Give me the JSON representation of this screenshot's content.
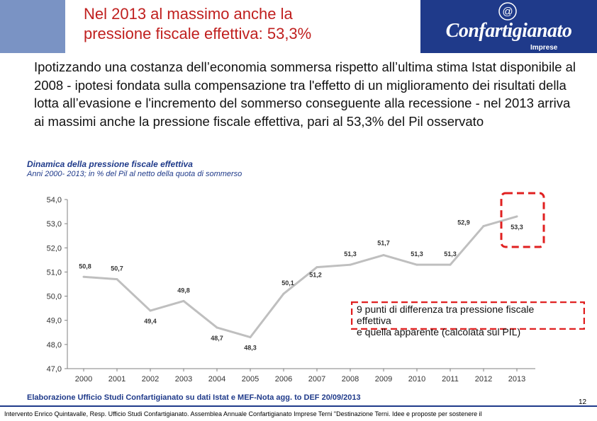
{
  "header": {
    "title_line1": "Nel 2013 al massimo anche la",
    "title_line2": "pressione fiscale effettiva: 53,3%",
    "logo_text": "Confartigianato",
    "logo_sub": "Imprese",
    "logo_symbol": "@",
    "colors": {
      "title": "#c0201f",
      "logo_bg": "#1f3a8a",
      "left_bar": "#7a93c4"
    }
  },
  "intro": "Ipotizzando una costanza dell’economia sommersa rispetto all’ultima stima Istat disponibile al 2008 - ipotesi fondata sulla compensazione tra l'effetto di un miglioramento dei risultati della lotta all’evasione e l'incremento del sommerso conseguente alla recessione - nel 2013 arriva ai massimi anche la pressione fiscale effettiva, pari al 53,3% del Pil osservato",
  "chart_data": {
    "type": "line",
    "title": "Dinamica della pressione fiscale effettiva",
    "subtitle": "Anni 2000- 2013; in % del Pil al netto della quota di sommerso",
    "categories": [
      "2000",
      "2001",
      "2002",
      "2003",
      "2004",
      "2005",
      "2006",
      "2007",
      "2008",
      "2009",
      "2010",
      "2011",
      "2012",
      "2013"
    ],
    "values": [
      50.8,
      50.7,
      49.4,
      49.8,
      48.7,
      48.3,
      50.1,
      51.2,
      51.3,
      51.7,
      51.3,
      51.3,
      52.9,
      53.3
    ],
    "value_labels": [
      "50,8",
      "50,7",
      "49,4",
      "49,8",
      "48,7",
      "48,3",
      "50,1",
      "51,2",
      "51,3",
      "51,7",
      "51,3",
      "51,3",
      "52,9",
      "53,3"
    ],
    "y_ticks": [
      "47,0",
      "48,0",
      "49,0",
      "50,0",
      "51,0",
      "52,0",
      "53,0",
      "54,0"
    ],
    "ylim": [
      47,
      54
    ],
    "line_color": "#bfbfbf",
    "grid": false,
    "legend": "none",
    "annotation": {
      "line1": "9 punti di differenza tra pressione fiscale",
      "line2": "effettiva",
      "line3": "e quella apparente (calcolata sul PIL)",
      "border_color": "#e02020"
    }
  },
  "source": "Elaborazione Ufficio Studi Confartigianato su dati Istat e MEF-Nota agg. to DEF 20/09/2013",
  "page_number": "12",
  "footer": "Intervento Enrico Quintavalle, Resp. Ufficio Studi Confartigianato. Assemblea Annuale Confartigianato Imprese Terni \"Destinazione Terni. Idee e proposte per sostenere il"
}
